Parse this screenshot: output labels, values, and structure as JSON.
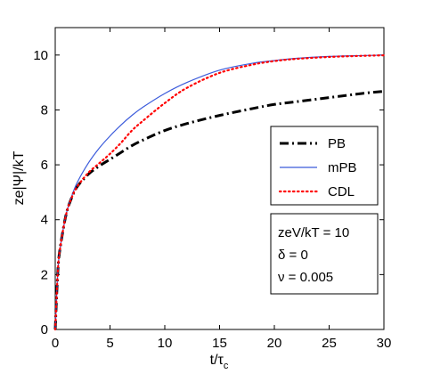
{
  "chart_data": {
    "type": "line",
    "title": "",
    "xlabel": "t/τ",
    "xlabel_sub": "c",
    "ylabel": "ze|Ψ|/kT",
    "xlim": [
      0,
      30
    ],
    "ylim": [
      0,
      11
    ],
    "xticks": [
      0,
      5,
      10,
      15,
      20,
      25,
      30
    ],
    "yticks": [
      0,
      2,
      4,
      6,
      8,
      10
    ],
    "grid": false,
    "legend_placement": "right",
    "series": [
      {
        "name": "PB",
        "style": "dash-dot",
        "color": "#000000",
        "x": [
          0,
          0.25,
          0.5,
          1,
          1.5,
          2,
          3,
          4,
          5,
          6,
          7,
          8,
          10,
          12,
          15,
          18,
          20,
          22,
          25,
          28,
          30
        ],
        "y": [
          0,
          2.2,
          3.1,
          4.2,
          4.8,
          5.2,
          5.65,
          5.95,
          6.2,
          6.45,
          6.7,
          6.9,
          7.25,
          7.5,
          7.8,
          8.05,
          8.2,
          8.3,
          8.45,
          8.6,
          8.68
        ]
      },
      {
        "name": "mPB",
        "style": "solid",
        "color": "#3b5bdb",
        "x": [
          0,
          0.25,
          0.5,
          1,
          1.5,
          2,
          3,
          4,
          5,
          6,
          7,
          8,
          10,
          12,
          15,
          18,
          20,
          22,
          25,
          28,
          30
        ],
        "y": [
          0,
          2.2,
          3.1,
          4.2,
          4.85,
          5.35,
          6.05,
          6.6,
          7.05,
          7.45,
          7.8,
          8.1,
          8.6,
          9.0,
          9.45,
          9.7,
          9.8,
          9.88,
          9.95,
          9.98,
          10.0
        ]
      },
      {
        "name": "CDL",
        "style": "dotted",
        "color": "#ff0000",
        "x": [
          0,
          0.25,
          0.5,
          1,
          1.5,
          2,
          3,
          4,
          5,
          6,
          7,
          8,
          10,
          12,
          15,
          18,
          20,
          22,
          25,
          28,
          30
        ],
        "y": [
          0,
          2.2,
          3.1,
          4.2,
          4.8,
          5.2,
          5.7,
          6.05,
          6.4,
          6.8,
          7.25,
          7.6,
          8.25,
          8.8,
          9.35,
          9.65,
          9.78,
          9.86,
          9.93,
          9.97,
          9.99
        ]
      }
    ],
    "annotation_lines": [
      "zeV/kT = 10",
      "δ = 0",
      "ν = 0.005"
    ]
  }
}
